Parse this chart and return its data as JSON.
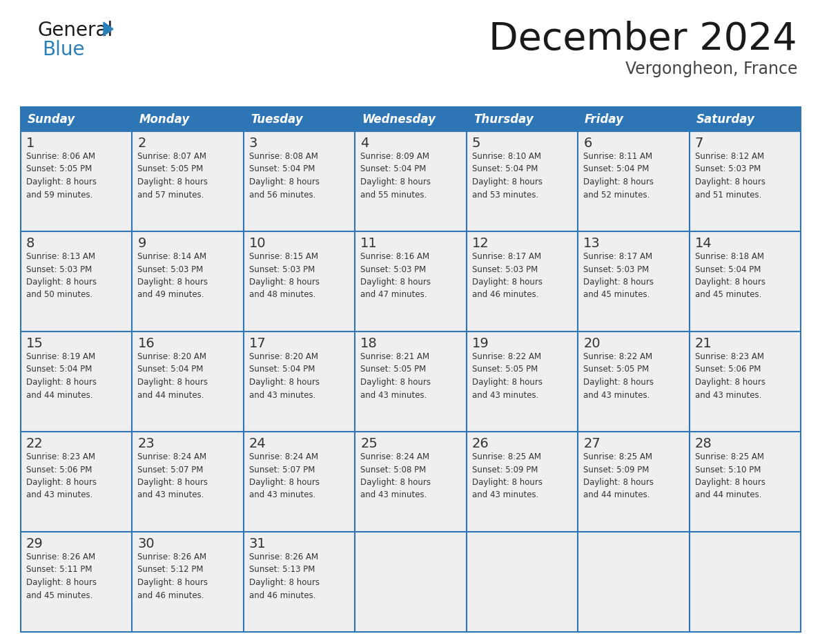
{
  "title": "December 2024",
  "subtitle": "Vergongheon, France",
  "header_color": "#2E75B6",
  "header_text_color": "#FFFFFF",
  "row_bg_color": "#EFEFEF",
  "border_color": "#2E75B6",
  "day_headers": [
    "Sunday",
    "Monday",
    "Tuesday",
    "Wednesday",
    "Thursday",
    "Friday",
    "Saturday"
  ],
  "weeks": [
    [
      {
        "day": 1,
        "sunrise": "8:06 AM",
        "sunset": "5:05 PM",
        "daylight": "8 hours\nand 59 minutes."
      },
      {
        "day": 2,
        "sunrise": "8:07 AM",
        "sunset": "5:05 PM",
        "daylight": "8 hours\nand 57 minutes."
      },
      {
        "day": 3,
        "sunrise": "8:08 AM",
        "sunset": "5:04 PM",
        "daylight": "8 hours\nand 56 minutes."
      },
      {
        "day": 4,
        "sunrise": "8:09 AM",
        "sunset": "5:04 PM",
        "daylight": "8 hours\nand 55 minutes."
      },
      {
        "day": 5,
        "sunrise": "8:10 AM",
        "sunset": "5:04 PM",
        "daylight": "8 hours\nand 53 minutes."
      },
      {
        "day": 6,
        "sunrise": "8:11 AM",
        "sunset": "5:04 PM",
        "daylight": "8 hours\nand 52 minutes."
      },
      {
        "day": 7,
        "sunrise": "8:12 AM",
        "sunset": "5:03 PM",
        "daylight": "8 hours\nand 51 minutes."
      }
    ],
    [
      {
        "day": 8,
        "sunrise": "8:13 AM",
        "sunset": "5:03 PM",
        "daylight": "8 hours\nand 50 minutes."
      },
      {
        "day": 9,
        "sunrise": "8:14 AM",
        "sunset": "5:03 PM",
        "daylight": "8 hours\nand 49 minutes."
      },
      {
        "day": 10,
        "sunrise": "8:15 AM",
        "sunset": "5:03 PM",
        "daylight": "8 hours\nand 48 minutes."
      },
      {
        "day": 11,
        "sunrise": "8:16 AM",
        "sunset": "5:03 PM",
        "daylight": "8 hours\nand 47 minutes."
      },
      {
        "day": 12,
        "sunrise": "8:17 AM",
        "sunset": "5:03 PM",
        "daylight": "8 hours\nand 46 minutes."
      },
      {
        "day": 13,
        "sunrise": "8:17 AM",
        "sunset": "5:03 PM",
        "daylight": "8 hours\nand 45 minutes."
      },
      {
        "day": 14,
        "sunrise": "8:18 AM",
        "sunset": "5:04 PM",
        "daylight": "8 hours\nand 45 minutes."
      }
    ],
    [
      {
        "day": 15,
        "sunrise": "8:19 AM",
        "sunset": "5:04 PM",
        "daylight": "8 hours\nand 44 minutes."
      },
      {
        "day": 16,
        "sunrise": "8:20 AM",
        "sunset": "5:04 PM",
        "daylight": "8 hours\nand 44 minutes."
      },
      {
        "day": 17,
        "sunrise": "8:20 AM",
        "sunset": "5:04 PM",
        "daylight": "8 hours\nand 43 minutes."
      },
      {
        "day": 18,
        "sunrise": "8:21 AM",
        "sunset": "5:05 PM",
        "daylight": "8 hours\nand 43 minutes."
      },
      {
        "day": 19,
        "sunrise": "8:22 AM",
        "sunset": "5:05 PM",
        "daylight": "8 hours\nand 43 minutes."
      },
      {
        "day": 20,
        "sunrise": "8:22 AM",
        "sunset": "5:05 PM",
        "daylight": "8 hours\nand 43 minutes."
      },
      {
        "day": 21,
        "sunrise": "8:23 AM",
        "sunset": "5:06 PM",
        "daylight": "8 hours\nand 43 minutes."
      }
    ],
    [
      {
        "day": 22,
        "sunrise": "8:23 AM",
        "sunset": "5:06 PM",
        "daylight": "8 hours\nand 43 minutes."
      },
      {
        "day": 23,
        "sunrise": "8:24 AM",
        "sunset": "5:07 PM",
        "daylight": "8 hours\nand 43 minutes."
      },
      {
        "day": 24,
        "sunrise": "8:24 AM",
        "sunset": "5:07 PM",
        "daylight": "8 hours\nand 43 minutes."
      },
      {
        "day": 25,
        "sunrise": "8:24 AM",
        "sunset": "5:08 PM",
        "daylight": "8 hours\nand 43 minutes."
      },
      {
        "day": 26,
        "sunrise": "8:25 AM",
        "sunset": "5:09 PM",
        "daylight": "8 hours\nand 43 minutes."
      },
      {
        "day": 27,
        "sunrise": "8:25 AM",
        "sunset": "5:09 PM",
        "daylight": "8 hours\nand 44 minutes."
      },
      {
        "day": 28,
        "sunrise": "8:25 AM",
        "sunset": "5:10 PM",
        "daylight": "8 hours\nand 44 minutes."
      }
    ],
    [
      {
        "day": 29,
        "sunrise": "8:26 AM",
        "sunset": "5:11 PM",
        "daylight": "8 hours\nand 45 minutes."
      },
      {
        "day": 30,
        "sunrise": "8:26 AM",
        "sunset": "5:12 PM",
        "daylight": "8 hours\nand 46 minutes."
      },
      {
        "day": 31,
        "sunrise": "8:26 AM",
        "sunset": "5:13 PM",
        "daylight": "8 hours\nand 46 minutes."
      },
      null,
      null,
      null,
      null
    ]
  ],
  "logo_color_general": "#1a1a1a",
  "logo_color_blue": "#2980B9",
  "logo_triangle_color": "#2980B9"
}
